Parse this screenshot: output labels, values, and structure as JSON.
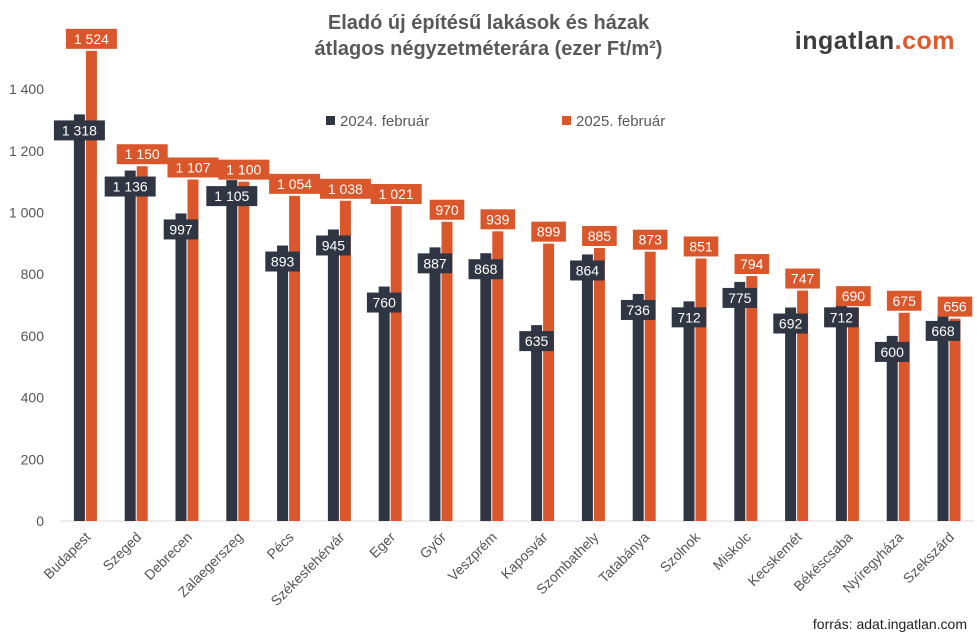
{
  "brand": {
    "part1": "ingatlan",
    "part2": ".com",
    "dark": "#3d3d3d",
    "accent": "#e05a2b"
  },
  "source": "forrás: adat.ingatlan.com",
  "chart_data": {
    "type": "bar",
    "title_line1": "Eladó új építésű lakások és házak",
    "title_line2": "átlagos négyzetméterára (ezer Ft/m²)",
    "categories": [
      "Budapest",
      "Szeged",
      "Debrecen",
      "Zalaegerszeg",
      "Pécs",
      "Székesfehérvár",
      "Eger",
      "Győr",
      "Veszprém",
      "Kaposvár",
      "Szombathely",
      "Tatabánya",
      "Szolnok",
      "Miskolc",
      "Kecskemét",
      "Békéscsaba",
      "Nyíregyháza",
      "Szekszárd"
    ],
    "series": [
      {
        "name": "2024. február",
        "color": "#2f3542",
        "values": [
          1318,
          1136,
          997,
          1105,
          893,
          945,
          760,
          887,
          868,
          635,
          864,
          736,
          712,
          775,
          692,
          712,
          600,
          668
        ],
        "labels": [
          "1 318",
          "1 136",
          "997",
          "1 105",
          "893",
          "945",
          "760",
          "887",
          "868",
          "635",
          "864",
          "736",
          "712",
          "775",
          "692",
          "712",
          "600",
          "668"
        ]
      },
      {
        "name": "2025. február",
        "color": "#d9572b",
        "values": [
          1524,
          1150,
          1107,
          1100,
          1054,
          1038,
          1021,
          970,
          939,
          899,
          885,
          873,
          851,
          794,
          747,
          690,
          675,
          656
        ],
        "labels": [
          "1 524",
          "1 150",
          "1 107",
          "1 100",
          "1 054",
          "1 038",
          "1 021",
          "970",
          "939",
          "899",
          "885",
          "873",
          "851",
          "794",
          "747",
          "690",
          "675",
          "656"
        ]
      }
    ],
    "yticks": [
      0,
      200,
      400,
      600,
      800,
      1000,
      1200,
      1400
    ],
    "ytick_labels": [
      "0",
      "200",
      "400",
      "600",
      "800",
      "1 000",
      "1 200",
      "1 400"
    ],
    "ylim": [
      0,
      1600
    ],
    "xlabel": "",
    "ylabel": "",
    "legend": "top-center",
    "grid": false
  }
}
